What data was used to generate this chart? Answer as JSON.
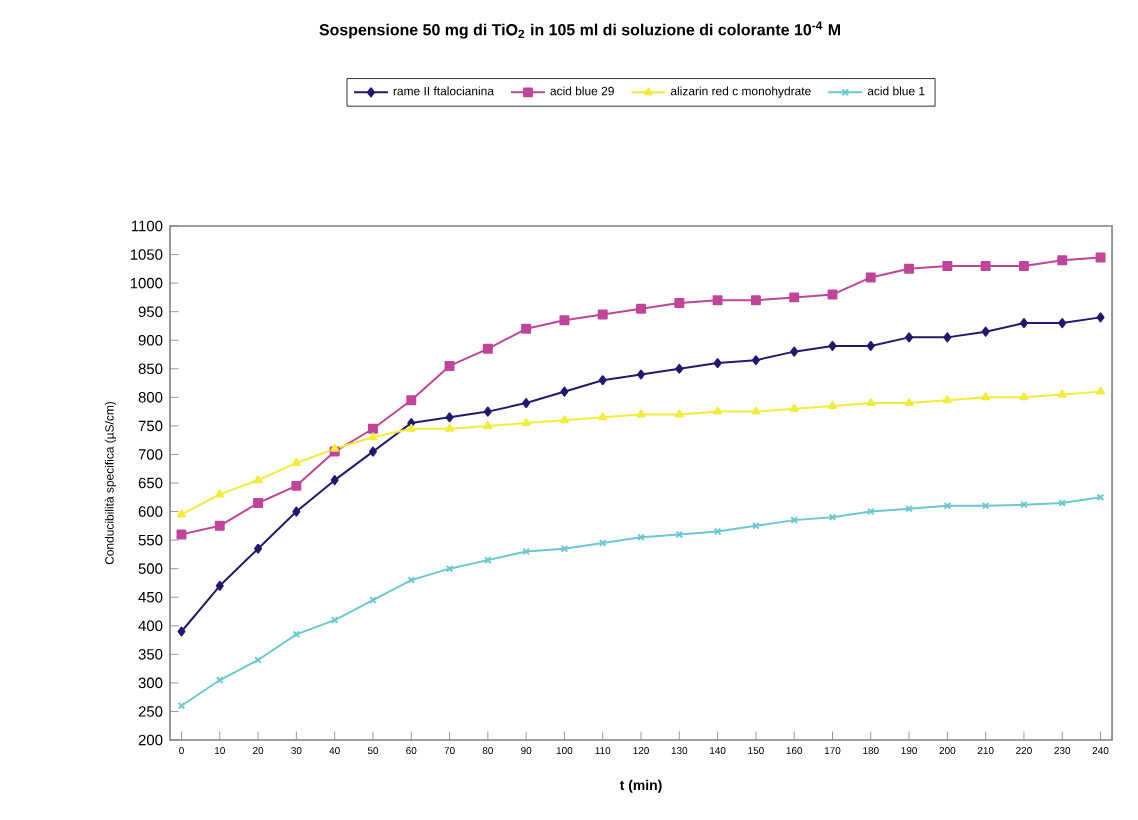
{
  "chart_data": {
    "type": "line",
    "title": "Sospensione 50 mg di TiO$_{2}$ in 105 ml di soluzione di colorante 10$^{-4}$ M",
    "xlabel": "t (min)",
    "ylabel": "Conducibilità specifica (µS/cm)",
    "categories": [
      "0",
      "10",
      "20",
      "30",
      "40",
      "50",
      "60",
      "70",
      "80",
      "90",
      "100",
      "110",
      "120",
      "130",
      "140",
      "150",
      "160",
      "170",
      "180",
      "190",
      "200",
      "210",
      "220",
      "230",
      "240"
    ],
    "series": [
      {
        "name": "rame II ftalocianina",
        "color": "#1f1a6e",
        "marker": "diamond",
        "values": [
          390,
          470,
          535,
          600,
          655,
          705,
          755,
          765,
          775,
          790,
          810,
          830,
          840,
          850,
          860,
          865,
          880,
          890,
          890,
          905,
          905,
          915,
          930,
          930,
          940
        ]
      },
      {
        "name": "acid blue 29",
        "color": "#c0459a",
        "marker": "square",
        "values": [
          560,
          575,
          615,
          645,
          705,
          745,
          795,
          855,
          885,
          920,
          935,
          945,
          955,
          965,
          970,
          970,
          975,
          980,
          1010,
          1025,
          1030,
          1030,
          1030,
          1040,
          1045
        ]
      },
      {
        "name": "alizarin red c monohydrate",
        "color": "#f0ec3a",
        "marker": "triangle",
        "values": [
          595,
          630,
          655,
          685,
          710,
          730,
          745,
          745,
          750,
          755,
          760,
          765,
          770,
          770,
          775,
          775,
          780,
          785,
          790,
          790,
          795,
          800,
          800,
          805,
          810
        ]
      },
      {
        "name": "acid blue 1",
        "color": "#6cc8d0",
        "marker": "cross",
        "values": [
          260,
          305,
          340,
          385,
          410,
          445,
          480,
          500,
          515,
          530,
          535,
          545,
          555,
          560,
          565,
          575,
          585,
          590,
          600,
          605,
          610,
          610,
          612,
          615,
          625
        ]
      }
    ],
    "ylim": [
      200,
      1100
    ],
    "yticks": [
      200,
      250,
      300,
      350,
      400,
      450,
      500,
      550,
      600,
      650,
      700,
      750,
      800,
      850,
      900,
      950,
      1000,
      1050,
      1100
    ],
    "legend": "top",
    "grid": false,
    "line_style": "solid"
  }
}
